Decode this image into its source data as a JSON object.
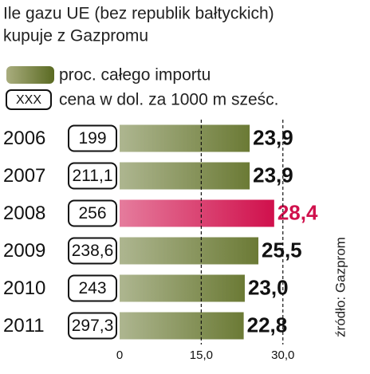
{
  "chart_data": {
    "type": "bar",
    "title": [
      "Ile gazu UE (bez republik bałtyckich)",
      "kupuje z Gazpromu"
    ],
    "legend": {
      "bar": "proc. całego importu",
      "box_sample": "XXX",
      "box": "cena w dol. za 1000 m sześc."
    },
    "categories": [
      "2006",
      "2007",
      "2008",
      "2009",
      "2010",
      "2011"
    ],
    "values": [
      23.9,
      23.9,
      28.4,
      25.5,
      23.0,
      22.8
    ],
    "value_labels": [
      "23,9",
      "23,9",
      "28,4",
      "25,5",
      "23,0",
      "22,8"
    ],
    "value_label_colors": [
      "#111111",
      "#111111",
      "#d0104c",
      "#111111",
      "#111111",
      "#111111"
    ],
    "prices": [
      "199",
      "211,1",
      "256",
      "238,6",
      "243",
      "297,3"
    ],
    "colors": [
      "#6b7a35",
      "#6b7a35",
      "#d0104c",
      "#6b7a35",
      "#6b7a35",
      "#6b7a35"
    ],
    "xlim": [
      0,
      40
    ],
    "xticks": [
      0,
      {
        "value": 15,
        "label": "15,0"
      },
      {
        "value": 30,
        "label": "30,0"
      }
    ],
    "grid": true,
    "source": "źródło: Gazprom"
  }
}
